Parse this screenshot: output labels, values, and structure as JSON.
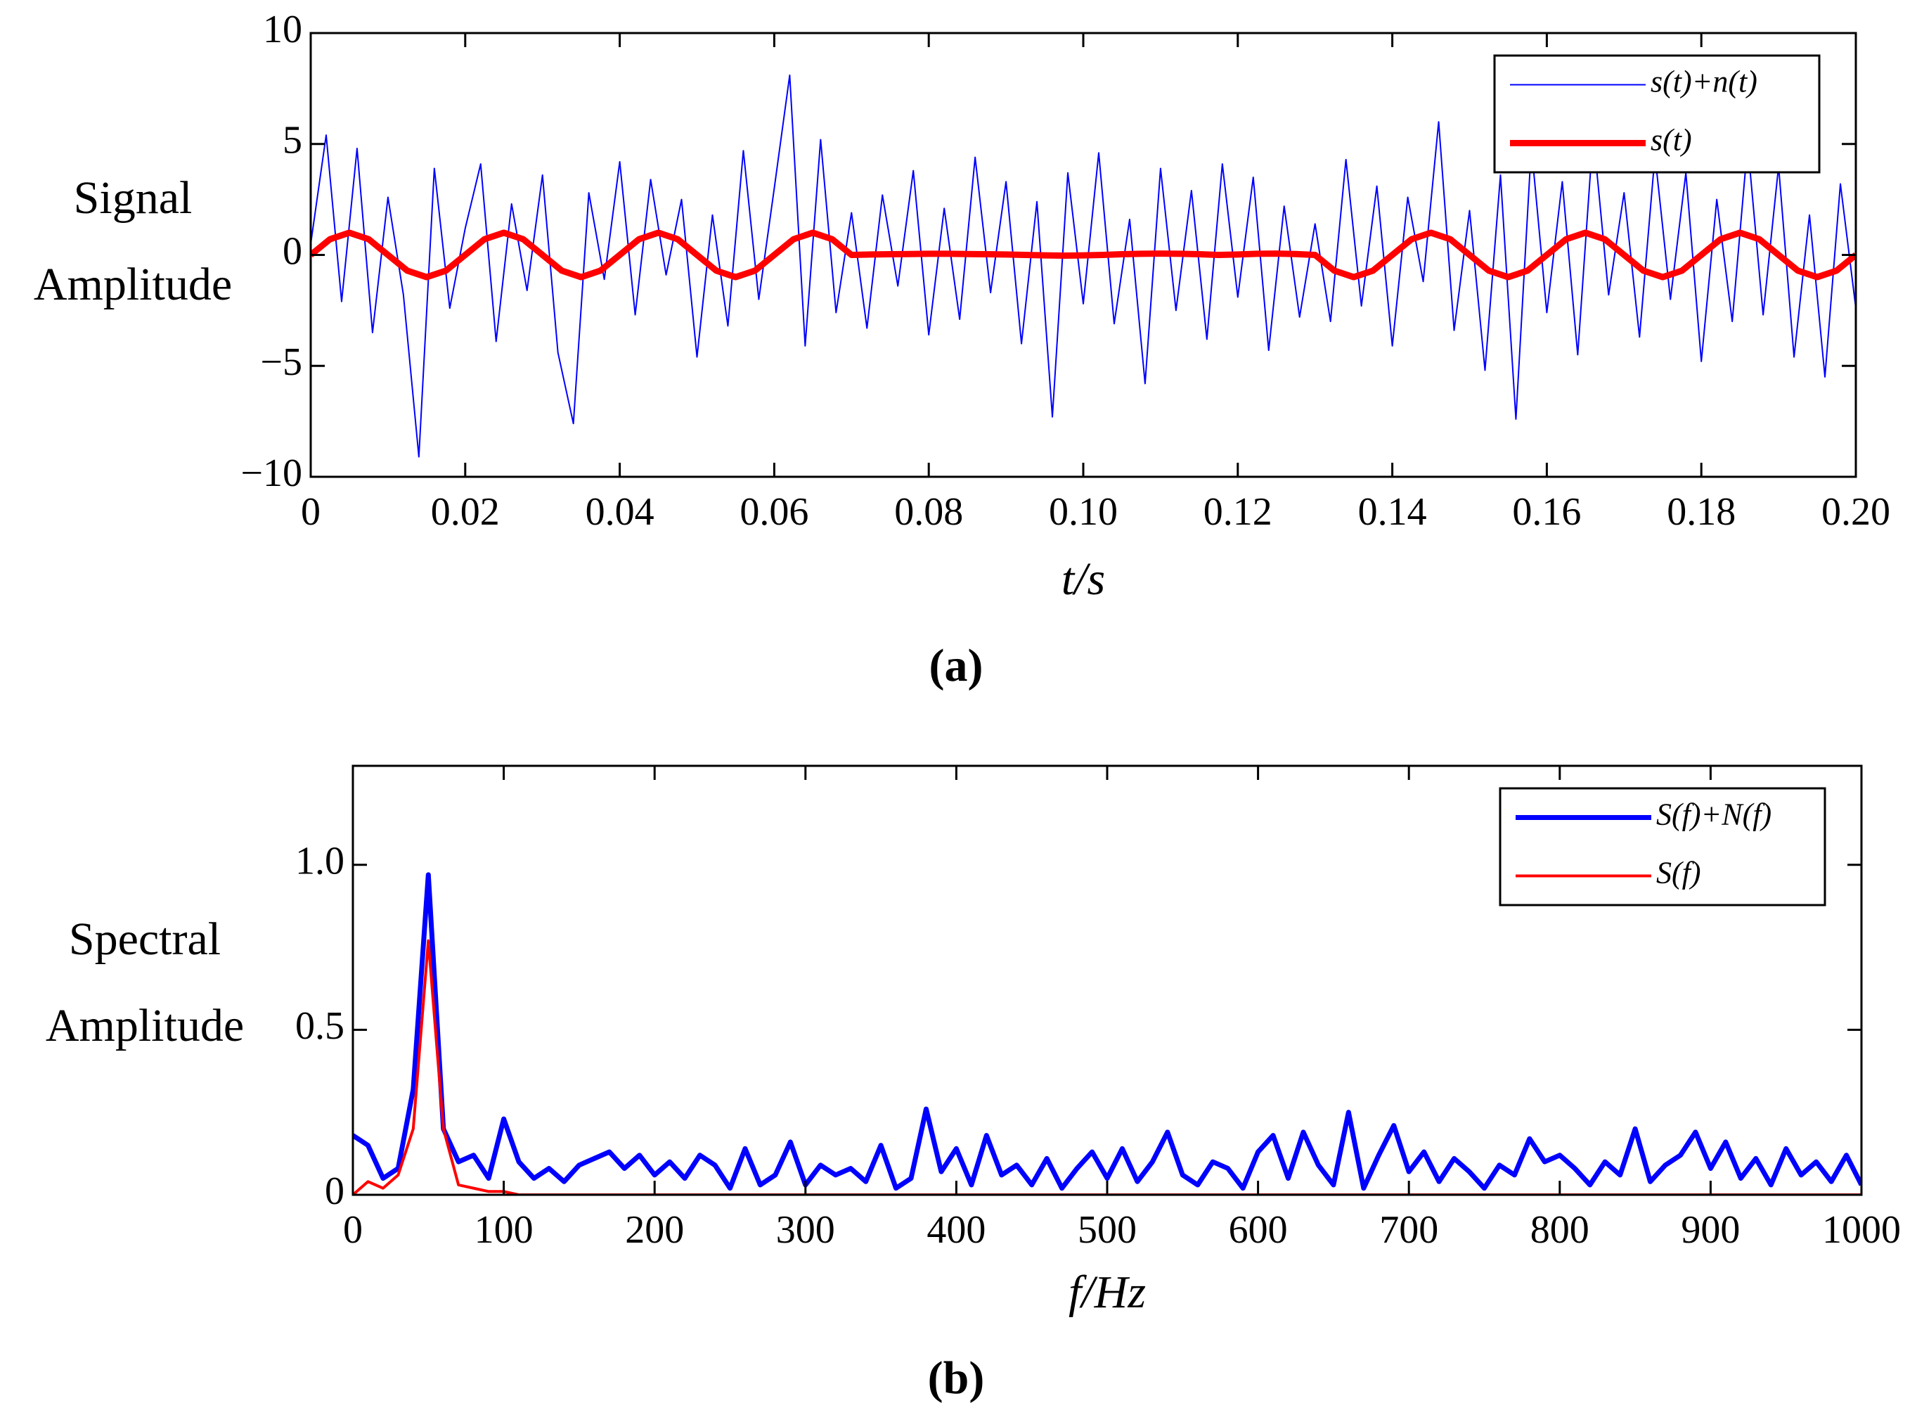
{
  "chart_data": [
    {
      "type": "line",
      "caption": "(a)",
      "xlabel": "t/s",
      "ylabel": [
        "Signal",
        "Amplitude"
      ],
      "xlim": [
        0,
        0.2
      ],
      "ylim": [
        -10,
        10
      ],
      "xticks": [
        0,
        0.02,
        0.04,
        0.06,
        0.08,
        {
          "value": 0.1,
          "label": "0.10"
        },
        0.12,
        0.14,
        0.16,
        0.18,
        {
          "value": 0.2,
          "label": "0.20"
        }
      ],
      "yticks": [
        {
          "value": -10,
          "label": "−10"
        },
        {
          "value": -5,
          "label": "−5"
        },
        0,
        5,
        10
      ],
      "legend": "upper right",
      "series": [
        {
          "name": "s(t)+n(t)",
          "color": "#0000ff",
          "linewidth": 2,
          "x": [
            0,
            0.002,
            0.004,
            0.006,
            0.008,
            0.01,
            0.012,
            0.014,
            0.016,
            0.018,
            0.02,
            0.022,
            0.024,
            0.026,
            0.028,
            0.03,
            0.032,
            0.034,
            0.036,
            0.038,
            0.04,
            0.042,
            0.044,
            0.046,
            0.048,
            0.05,
            0.052,
            0.054,
            0.056,
            0.058,
            0.06,
            0.062,
            0.064,
            0.066,
            0.068,
            0.07,
            0.072,
            0.074,
            0.076,
            0.078,
            0.08,
            0.082,
            0.084,
            0.086,
            0.088,
            0.09,
            0.092,
            0.094,
            0.096,
            0.098,
            0.1,
            0.102,
            0.104,
            0.106,
            0.108,
            0.11,
            0.112,
            0.114,
            0.116,
            0.118,
            0.12,
            0.122,
            0.124,
            0.126,
            0.128,
            0.13,
            0.132,
            0.134,
            0.136,
            0.138,
            0.14,
            0.142,
            0.144,
            0.146,
            0.148,
            0.15,
            0.152,
            0.154,
            0.156,
            0.158,
            0.16,
            0.162,
            0.164,
            0.166,
            0.168,
            0.17,
            0.172,
            0.174,
            0.176,
            0.178,
            0.18,
            0.182,
            0.184,
            0.186,
            0.188,
            0.19,
            0.192,
            0.194,
            0.196,
            0.198,
            0.2
          ],
          "values": [
            0.5,
            5.4,
            -2.1,
            4.8,
            -3.5,
            2.6,
            -1.8,
            -9.1,
            3.9,
            -2.4,
            1.2,
            4.1,
            -3.9,
            2.3,
            -1.6,
            3.6,
            -4.4,
            -7.6,
            2.8,
            -1.1,
            4.2,
            -2.7,
            3.4,
            -0.9,
            2.5,
            -4.6,
            1.8,
            -3.2,
            4.7,
            -2.0,
            3.0,
            8.1,
            -4.1,
            5.2,
            -2.6,
            1.9,
            -3.3,
            2.7,
            -1.4,
            3.8,
            -3.6,
            2.1,
            -2.9,
            4.4,
            -1.7,
            3.3,
            -4.0,
            2.4,
            -7.3,
            3.7,
            -2.2,
            4.6,
            -3.1,
            1.6,
            -5.8,
            3.9,
            -2.5,
            2.9,
            -3.8,
            4.1,
            -1.9,
            3.5,
            -4.3,
            2.2,
            -2.8,
            1.4,
            -3.0,
            4.3,
            -2.3,
            3.1,
            -4.1,
            2.6,
            -1.2,
            6.0,
            -3.4,
            2.0,
            -5.2,
            3.6,
            -7.4,
            4.9,
            -2.6,
            3.3,
            -4.5,
            5.5,
            -1.8,
            2.8,
            -3.7,
            4.5,
            -2.0,
            3.7,
            -4.8,
            2.5,
            -3.0,
            5.0,
            -2.7,
            4.0,
            -4.6,
            1.8,
            -5.5,
            3.2,
            -2.4
          ]
        },
        {
          "name": "s(t)",
          "color": "#ff0000",
          "linewidth": 9,
          "x": [
            0,
            0.0025,
            0.005,
            0.0075,
            0.01,
            0.0125,
            0.015,
            0.0175,
            0.02,
            0.0225,
            0.025,
            0.0275,
            0.03,
            0.0325,
            0.035,
            0.0375,
            0.04,
            0.0425,
            0.045,
            0.0475,
            0.05,
            0.0525,
            0.055,
            0.0575,
            0.06,
            0.0625,
            0.065,
            0.0675,
            0.07,
            0.0725,
            0.075,
            0.0775,
            0.08,
            0.0825,
            0.085,
            0.0875,
            0.09,
            0.0925,
            0.095,
            0.0975,
            0.1,
            0.1025,
            0.105,
            0.1075,
            0.11,
            0.1125,
            0.115,
            0.1175,
            0.12,
            0.1225,
            0.125,
            0.1275,
            0.13,
            0.1325,
            0.135,
            0.1375,
            0.14,
            0.1425,
            0.145,
            0.1475,
            0.15,
            0.1525,
            0.155,
            0.1575,
            0.16,
            0.1625,
            0.165,
            0.1675,
            0.17,
            0.1725,
            0.175,
            0.1775,
            0.18,
            0.1825,
            0.185,
            0.1875,
            0.19,
            0.1925,
            0.195,
            0.1975,
            0.2
          ],
          "values": [
            0,
            0.71,
            1,
            0.71,
            0,
            -0.71,
            -1,
            -0.71,
            0,
            0.71,
            1,
            0.71,
            0,
            -0.71,
            -1,
            -0.71,
            0,
            0.71,
            1,
            0.71,
            0,
            -0.71,
            -1,
            -0.71,
            0,
            0.71,
            1,
            0.71,
            0,
            0.02,
            0.03,
            0.04,
            0.05,
            0.05,
            0.04,
            0.03,
            0.02,
            0,
            -0.02,
            -0.03,
            -0.02,
            0,
            0.03,
            0.05,
            0.06,
            0.05,
            0.03,
            0,
            0.02,
            0.05,
            0.06,
            0.04,
            0,
            -0.71,
            -1,
            -0.71,
            0,
            0.71,
            1,
            0.71,
            0,
            -0.71,
            -1,
            -0.71,
            0,
            0.71,
            1,
            0.71,
            0,
            -0.71,
            -1,
            -0.71,
            0,
            0.71,
            1,
            0.71,
            0,
            -0.71,
            -1,
            -0.71,
            0
          ]
        }
      ]
    },
    {
      "type": "line",
      "caption": "(b)",
      "xlabel": "f/Hz",
      "ylabel": [
        "Spectral",
        "Amplitude"
      ],
      "xlim": [
        0,
        1000
      ],
      "ylim": [
        0,
        1.3
      ],
      "xticks": [
        0,
        100,
        200,
        300,
        400,
        500,
        600,
        700,
        800,
        900,
        1000
      ],
      "yticks": [
        0,
        0.5,
        {
          "value": 1,
          "label": "1.0"
        }
      ],
      "legend": "upper right",
      "x": [
        0,
        10,
        20,
        30,
        40,
        50,
        60,
        70,
        80,
        90,
        100,
        110,
        120,
        130,
        140,
        150,
        160,
        170,
        180,
        190,
        200,
        210,
        220,
        230,
        240,
        250,
        260,
        270,
        280,
        290,
        300,
        310,
        320,
        330,
        340,
        350,
        360,
        370,
        380,
        390,
        400,
        410,
        420,
        430,
        440,
        450,
        460,
        470,
        480,
        490,
        500,
        510,
        520,
        530,
        540,
        550,
        560,
        570,
        580,
        590,
        600,
        610,
        620,
        630,
        640,
        650,
        660,
        670,
        680,
        690,
        700,
        710,
        720,
        730,
        740,
        750,
        760,
        770,
        780,
        790,
        800,
        810,
        820,
        830,
        840,
        850,
        860,
        870,
        880,
        890,
        900,
        910,
        920,
        930,
        940,
        950,
        960,
        970,
        980,
        990,
        1000
      ],
      "series": [
        {
          "name": "S(f)+N(f)",
          "color": "#0000ff",
          "linewidth": 7,
          "values": [
            0.18,
            0.15,
            0.05,
            0.08,
            0.32,
            0.97,
            0.2,
            0.1,
            0.12,
            0.05,
            0.23,
            0.1,
            0.05,
            0.08,
            0.04,
            0.09,
            0.11,
            0.13,
            0.08,
            0.12,
            0.06,
            0.1,
            0.05,
            0.12,
            0.09,
            0.02,
            0.14,
            0.03,
            0.06,
            0.16,
            0.03,
            0.09,
            0.06,
            0.08,
            0.04,
            0.15,
            0.02,
            0.05,
            0.26,
            0.07,
            0.14,
            0.03,
            0.18,
            0.06,
            0.09,
            0.03,
            0.11,
            0.02,
            0.08,
            0.13,
            0.05,
            0.14,
            0.04,
            0.1,
            0.19,
            0.06,
            0.03,
            0.1,
            0.08,
            0.02,
            0.13,
            0.18,
            0.05,
            0.19,
            0.09,
            0.03,
            0.25,
            0.02,
            0.12,
            0.21,
            0.07,
            0.13,
            0.04,
            0.11,
            0.07,
            0.02,
            0.09,
            0.06,
            0.17,
            0.1,
            0.12,
            0.08,
            0.03,
            0.1,
            0.06,
            0.2,
            0.04,
            0.09,
            0.12,
            0.19,
            0.08,
            0.16,
            0.05,
            0.11,
            0.03,
            0.14,
            0.06,
            0.1,
            0.04,
            0.12,
            0.03
          ]
        },
        {
          "name": "S(f)",
          "color": "#ff0000",
          "linewidth": 4,
          "values": [
            0,
            0.04,
            0.02,
            0.06,
            0.2,
            0.77,
            0.2,
            0.03,
            0.02,
            0.01,
            0.01,
            0,
            0,
            0,
            0,
            0,
            0,
            0,
            0,
            0,
            0,
            0,
            0,
            0,
            0,
            0,
            0,
            0,
            0,
            0,
            0,
            0,
            0,
            0,
            0,
            0,
            0,
            0,
            0,
            0,
            0,
            0,
            0,
            0,
            0,
            0,
            0,
            0,
            0,
            0,
            0,
            0,
            0,
            0,
            0,
            0,
            0,
            0,
            0,
            0,
            0,
            0,
            0,
            0,
            0,
            0,
            0,
            0,
            0,
            0,
            0,
            0,
            0,
            0,
            0,
            0,
            0,
            0,
            0,
            0,
            0,
            0,
            0,
            0,
            0,
            0,
            0,
            0,
            0,
            0,
            0,
            0,
            0,
            0,
            0,
            0,
            0,
            0,
            0,
            0,
            0
          ]
        }
      ]
    }
  ]
}
